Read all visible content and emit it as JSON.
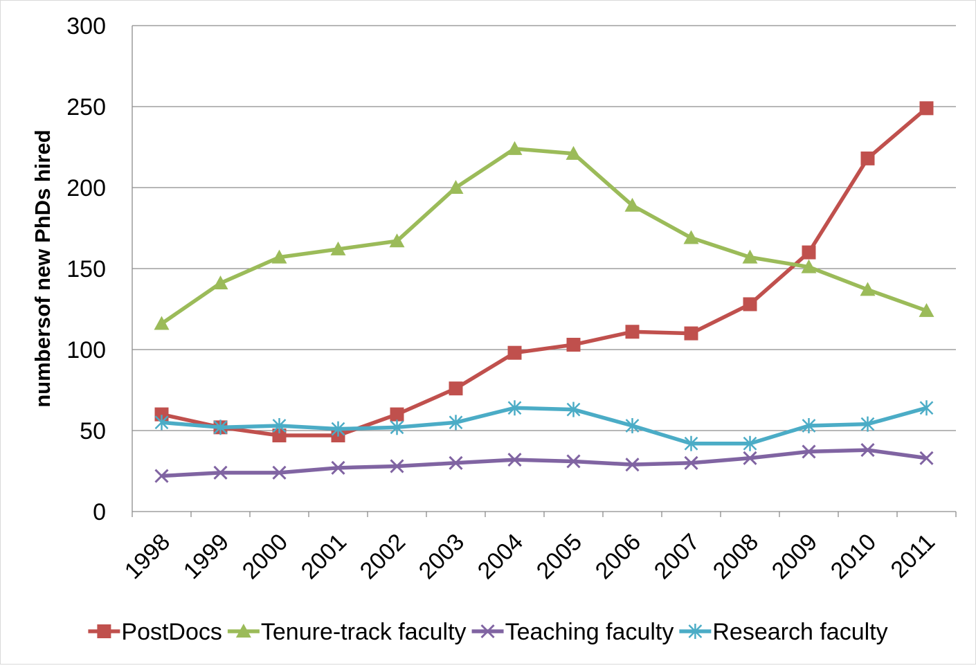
{
  "chart_data": {
    "type": "line",
    "title": "",
    "xlabel": "",
    "ylabel": "numbersof new PhDs hired",
    "ylim": [
      0,
      300
    ],
    "yticks": [
      0,
      50,
      100,
      150,
      200,
      250,
      300
    ],
    "grid": true,
    "legend_position": "bottom",
    "categories": [
      "1998",
      "1999",
      "2000",
      "2001",
      "2002",
      "2003",
      "2004",
      "2005",
      "2006",
      "2007",
      "2008",
      "2009",
      "2010",
      "2011"
    ],
    "series": [
      {
        "name": "PostDocs",
        "color": "#c0504d",
        "marker": "square",
        "values": [
          60,
          52,
          47,
          47,
          60,
          76,
          98,
          103,
          111,
          110,
          128,
          160,
          218,
          249
        ]
      },
      {
        "name": "Tenure-track faculty",
        "color": "#9bbb59",
        "marker": "triangle",
        "values": [
          116,
          141,
          157,
          162,
          167,
          200,
          224,
          221,
          189,
          169,
          157,
          151,
          137,
          124
        ]
      },
      {
        "name": "Teaching faculty",
        "color": "#8064a2",
        "marker": "x",
        "values": [
          22,
          24,
          24,
          27,
          28,
          30,
          32,
          31,
          29,
          30,
          33,
          37,
          38,
          33
        ]
      },
      {
        "name": "Research faculty",
        "color": "#4bacc6",
        "marker": "star",
        "values": [
          55,
          52,
          53,
          51,
          52,
          55,
          64,
          63,
          53,
          42,
          42,
          53,
          54,
          64
        ]
      }
    ]
  }
}
